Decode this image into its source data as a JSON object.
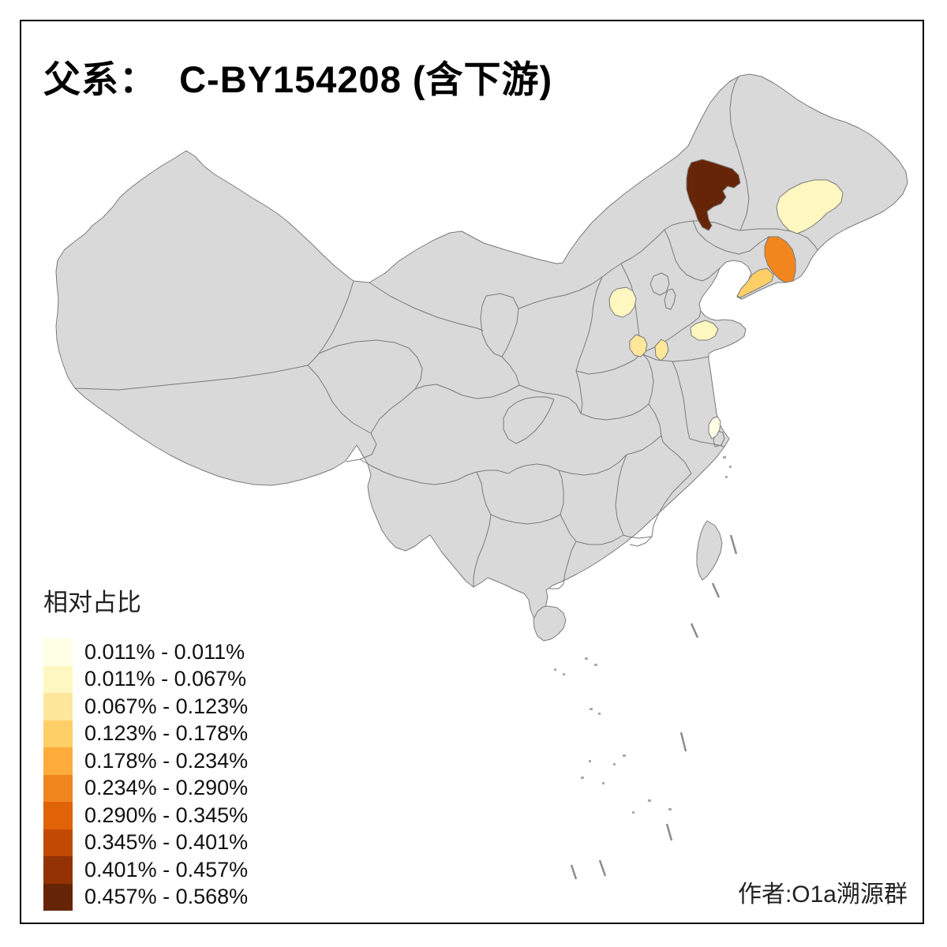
{
  "title": "父系：  C-BY154208 (含下游)",
  "legend": {
    "title": "相对占比",
    "classes": [
      {
        "label": "0.011% - 0.011%",
        "color": "#FFFFE5"
      },
      {
        "label": "0.011% - 0.067%",
        "color": "#FFF7C0"
      },
      {
        "label": "0.067% - 0.123%",
        "color": "#FEE69B"
      },
      {
        "label": "0.123% - 0.178%",
        "color": "#FECF66"
      },
      {
        "label": "0.178% - 0.234%",
        "color": "#FEAC3B"
      },
      {
        "label": "0.234% - 0.290%",
        "color": "#F1861F"
      },
      {
        "label": "0.290% - 0.345%",
        "color": "#E16308"
      },
      {
        "label": "0.345% - 0.401%",
        "color": "#C14902"
      },
      {
        "label": "0.401% - 0.457%",
        "color": "#933204"
      },
      {
        "label": "0.457% - 0.568%",
        "color": "#662506"
      }
    ]
  },
  "attribution": "作者:O1a溯源群",
  "map": {
    "background": "#FFFFFF",
    "base_fill": "#D9D9D9",
    "border_color": "#7A7A7A",
    "frame_color": "#000000",
    "regions": [
      {
        "name": "inner-mongolia-hinggan",
        "color": "#662506",
        "range": "0.457% - 0.568%"
      },
      {
        "name": "heilongjiang-suihua",
        "color": "#FFF7C0",
        "range": "0.011% - 0.067%"
      },
      {
        "name": "liaoning-dandong",
        "color": "#F1861F",
        "range": "0.234% - 0.290%"
      },
      {
        "name": "liaoning-dalian",
        "color": "#FECF66",
        "range": "0.123% - 0.178%"
      },
      {
        "name": "shanxi-central",
        "color": "#FFF7C0",
        "range": "0.011% - 0.067%"
      },
      {
        "name": "henan-north",
        "color": "#FEE69B",
        "range": "0.067% - 0.123%"
      },
      {
        "name": "henan-shandong-junction",
        "color": "#FEE69B",
        "range": "0.067% - 0.123%"
      },
      {
        "name": "shandong-central",
        "color": "#FFF7C0",
        "range": "0.011% - 0.067%"
      },
      {
        "name": "jiangsu-suzhou",
        "color": "#FFFFE5",
        "range": "0.011% - 0.011%"
      }
    ]
  }
}
